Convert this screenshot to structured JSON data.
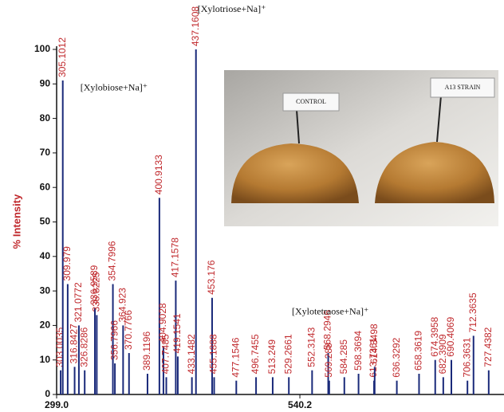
{
  "chart_data": {
    "type": "spectrum",
    "y_label": "% Intensity",
    "x": [
      303.0035,
      305.1012,
      309.979,
      316.8427,
      321.0772,
      326.8286,
      336.9589,
      338.8225,
      354.7996,
      356.7966,
      364.923,
      370.7766,
      389.1196,
      400.9133,
      404.9028,
      407.7485,
      417.1578,
      419.1541,
      433.1482,
      437.1608,
      453.176,
      455.1888,
      477.1546,
      496.7455,
      513.249,
      529.2661,
      552.3143,
      568.2946,
      569.288,
      584.285,
      598.3694,
      613.7361,
      614.3498,
      636.3292,
      658.3619,
      674.3958,
      682.3909,
      690.4069,
      706.3631,
      712.3635,
      727.4382
    ],
    "values": [
      7,
      91,
      32,
      8,
      20,
      7,
      25,
      23,
      32,
      9,
      20,
      12,
      6,
      57,
      14,
      5,
      33,
      11,
      5,
      100,
      28,
      5,
      4,
      5,
      5,
      5,
      7,
      12,
      4,
      5,
      6,
      4,
      8,
      4,
      6,
      10,
      5,
      10,
      4,
      17,
      7
    ],
    "color": "#1a2a7a",
    "label_color": "#c0282c",
    "xlim": [
      299.0,
      742.6
    ],
    "ylim": [
      0,
      100
    ],
    "xticks": [
      {
        "value": 299.0,
        "label": "299.0"
      },
      {
        "value": 540.2,
        "label": "540.2"
      }
    ],
    "yticks": [
      0,
      10,
      20,
      30,
      40,
      50,
      60,
      70,
      80,
      90,
      100
    ],
    "annotations": [
      {
        "text": "[Xylobiose+Na]⁺",
        "x": 305.1012,
        "y": 91
      },
      {
        "text": "[Xylotriose+Na]⁺",
        "x": 437.1608,
        "y": 100
      },
      {
        "text": "[Xylotetraose+Na]⁺",
        "x": 453.176,
        "y": 28
      }
    ]
  },
  "photo_labels": [
    "CONTROL",
    "A13 STRAIN"
  ]
}
